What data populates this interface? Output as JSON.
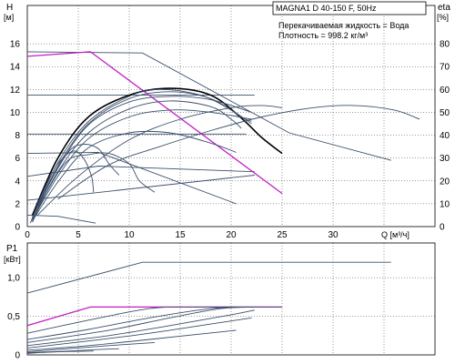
{
  "header": {
    "model": "MAGNA1 D 40-150 F, 50Hz",
    "liquid": "Перекачиваемая жидкость = Вода",
    "density": "Плотность = 998.2 кг/м³"
  },
  "chart_data": [
    {
      "type": "line",
      "title": "",
      "y_left_label": "H",
      "y_left_unit": "[м]",
      "y_right_label": "eta",
      "y_right_unit": "[%]",
      "x_label": "Q [м³/ч]",
      "xlim": [
        0,
        40
      ],
      "ylim": [
        0,
        18
      ],
      "ylim_right": [
        0,
        90
      ],
      "x_ticks": [
        "0",
        "5",
        "10",
        "15",
        "20",
        "25",
        "30",
        "Q [м³/ч]"
      ],
      "y_ticks": [
        "0",
        "2",
        "4",
        "6",
        "8",
        "10",
        "12",
        "14",
        "16"
      ],
      "y_right_ticks": [
        "0",
        "10",
        "20",
        "30",
        "40",
        "50",
        "60",
        "70",
        "80"
      ],
      "grid": true,
      "series": [
        {
          "role": "const-curve",
          "color": "#3b4f6b",
          "points": [
            [
              0,
              15.3
            ],
            [
              11.3,
              15.2
            ],
            [
              25.7,
              8.2
            ],
            [
              35.7,
              5.8
            ]
          ]
        },
        {
          "role": "const-curve",
          "color": "#3b4f6b",
          "points": [
            [
              0,
              11.5
            ],
            [
              22.3,
              11.5
            ]
          ]
        },
        {
          "role": "const-curve",
          "color": "#3b4f6b",
          "points": [
            [
              0,
              8.1
            ],
            [
              21.5,
              8.1
            ]
          ]
        },
        {
          "role": "const-curve",
          "color": "#3b4f6b",
          "points": [
            [
              0,
              6.4
            ],
            [
              7,
              6.5
            ],
            [
              20.5,
              2.0
            ]
          ]
        },
        {
          "role": "const-curve",
          "color": "#3b4f6b",
          "points": [
            [
              0,
              4.4
            ],
            [
              7,
              5.3
            ],
            [
              22.3,
              4.8
            ]
          ]
        },
        {
          "role": "const-curve",
          "color": "#3b4f6b",
          "points": [
            [
              0,
              2.3
            ],
            [
              22.3,
              4.5
            ]
          ]
        },
        {
          "role": "const-curve",
          "color": "#3b4f6b",
          "points": [
            [
              0,
              1.0
            ],
            [
              3,
              0.9
            ],
            [
              6.7,
              0.3
            ]
          ]
        },
        {
          "role": "autoadapt",
          "color": "#c21fc2",
          "points": [
            [
              0,
              14.9
            ],
            [
              6.2,
              15.3
            ],
            [
              25,
              2.9
            ]
          ]
        },
        {
          "role": "curve",
          "color": "#000000",
          "points": [
            [
              0.5,
              1
            ],
            [
              3,
              6
            ],
            [
              6,
              9.6
            ],
            [
              10,
              11.5
            ],
            [
              14,
              12.1
            ],
            [
              18,
              11.5
            ],
            [
              21,
              9.5
            ],
            [
              23,
              7.8
            ],
            [
              25,
              6.4
            ]
          ]
        },
        {
          "role": "curve",
          "color": "#3b4f6b",
          "points": [
            [
              0.5,
              0.8
            ],
            [
              3,
              5.3
            ],
            [
              6,
              9
            ],
            [
              10,
              11.2
            ],
            [
              14,
              11.8
            ],
            [
              18,
              11.2
            ],
            [
              21,
              9.6
            ],
            [
              22,
              9.2
            ]
          ]
        },
        {
          "role": "curve",
          "color": "#3b4f6b",
          "points": [
            [
              0.5,
              0.8
            ],
            [
              3,
              5.6
            ],
            [
              6,
              9.2
            ],
            [
              10,
              11.4
            ],
            [
              13,
              12.0
            ],
            [
              17,
              11.5
            ],
            [
              20,
              10.2
            ],
            [
              22,
              9.0
            ]
          ]
        },
        {
          "role": "curve",
          "color": "#3b4f6b",
          "points": [
            [
              0.5,
              0.8
            ],
            [
              3,
              5.1
            ],
            [
              6,
              8.9
            ],
            [
              10,
              10.9
            ],
            [
              14,
              11.4
            ],
            [
              18,
              11.1
            ],
            [
              22,
              10.0
            ]
          ]
        },
        {
          "role": "curve",
          "color": "#3b4f6b",
          "points": [
            [
              0.5,
              0.6
            ],
            [
              3,
              4.8
            ],
            [
              6,
              8.2
            ],
            [
              10,
              10.3
            ],
            [
              14,
              11.0
            ],
            [
              18,
              10.5
            ],
            [
              20,
              9.4
            ],
            [
              21,
              8.6
            ]
          ]
        },
        {
          "role": "curve",
          "color": "#3b4f6b",
          "points": [
            [
              0.5,
              0.6
            ],
            [
              3,
              4.4
            ],
            [
              6,
              7.7
            ],
            [
              10,
              9.6
            ],
            [
              14,
              10.2
            ],
            [
              18,
              10.0
            ],
            [
              22,
              9.4
            ]
          ]
        },
        {
          "role": "curve",
          "color": "#3b4f6b",
          "points": [
            [
              0.5,
              0.5
            ],
            [
              3,
              3.9
            ],
            [
              6,
              6.9
            ],
            [
              10,
              8.2
            ],
            [
              14,
              8.2
            ],
            [
              18,
              7.3
            ],
            [
              20.5,
              6.5
            ]
          ]
        },
        {
          "role": "curve",
          "color": "#3b4f6b",
          "points": [
            [
              0.5,
              0.4
            ],
            [
              2,
              3.2
            ],
            [
              4,
              5.8
            ],
            [
              6,
              6.3
            ],
            [
              8,
              6.4
            ],
            [
              10,
              5.5
            ],
            [
              11,
              4.0
            ],
            [
              12.5,
              3.0
            ]
          ]
        },
        {
          "role": "curve",
          "color": "#3b4f6b",
          "points": [
            [
              0.5,
              0.4
            ],
            [
              2,
              3.5
            ],
            [
              4,
              6.5
            ],
            [
              5.5,
              7.2
            ],
            [
              7,
              6.8
            ],
            [
              8,
              5.5
            ],
            [
              9,
              4.5
            ]
          ]
        },
        {
          "role": "curve",
          "color": "#3b4f6b",
          "points": [
            [
              0.3,
              0.3
            ],
            [
              1.5,
              3
            ],
            [
              3,
              5.5
            ],
            [
              4.5,
              6.6
            ],
            [
              5.5,
              6.0
            ],
            [
              6.3,
              4.4
            ],
            [
              6.5,
              3.0
            ]
          ]
        },
        {
          "role": "eff",
          "color": "#3b4f6b",
          "points": [
            [
              3,
              12
            ],
            [
              8,
              27
            ],
            [
              13,
              35
            ],
            [
              18,
              42
            ],
            [
              23,
              48
            ],
            [
              28,
              52
            ],
            [
              32,
              53
            ],
            [
              36,
              51
            ],
            [
              38.5,
              47
            ]
          ]
        },
        {
          "role": "eff",
          "color": "#3b4f6b",
          "points": [
            [
              1,
              5
            ],
            [
              5,
              22
            ],
            [
              10,
              38
            ],
            [
              15,
              47
            ],
            [
              20,
              52
            ],
            [
              23,
              53
            ],
            [
              25,
              52
            ]
          ]
        }
      ]
    },
    {
      "type": "line",
      "title": "",
      "y_label": "P1",
      "y_unit": "[кВт]",
      "xlim": [
        0,
        40
      ],
      "ylim": [
        0,
        1.45
      ],
      "y_ticks": [
        "0",
        "0,5",
        "1,0"
      ],
      "grid": true,
      "series": [
        {
          "role": "const-curve",
          "color": "#3b4f6b",
          "points": [
            [
              0,
              0.8
            ],
            [
              11.3,
              1.2
            ],
            [
              35.7,
              1.2
            ]
          ]
        },
        {
          "role": "autoadapt",
          "color": "#c21fc2",
          "points": [
            [
              0,
              0.38
            ],
            [
              6.2,
              0.62
            ],
            [
              25,
              0.62
            ]
          ]
        },
        {
          "role": "curve",
          "color": "#3b4f6b",
          "points": [
            [
              0,
              0.28
            ],
            [
              6,
              0.45
            ],
            [
              12,
              0.6
            ],
            [
              16,
              0.62
            ],
            [
              25,
              0.62
            ]
          ]
        },
        {
          "role": "curve",
          "color": "#3b4f6b",
          "points": [
            [
              0,
              0.2
            ],
            [
              6,
              0.33
            ],
            [
              12,
              0.48
            ],
            [
              18,
              0.6
            ],
            [
              22.3,
              0.62
            ]
          ]
        },
        {
          "role": "curve",
          "color": "#3b4f6b",
          "points": [
            [
              0,
              0.16
            ],
            [
              8,
              0.32
            ],
            [
              14,
              0.48
            ],
            [
              19,
              0.6
            ],
            [
              22.3,
              0.62
            ]
          ]
        },
        {
          "role": "curve",
          "color": "#3b4f6b",
          "points": [
            [
              0,
              0.12
            ],
            [
              8,
              0.25
            ],
            [
              14,
              0.38
            ],
            [
              20,
              0.52
            ],
            [
              22.3,
              0.58
            ]
          ]
        },
        {
          "role": "curve",
          "color": "#3b4f6b",
          "points": [
            [
              0,
              0.09
            ],
            [
              6,
              0.18
            ],
            [
              12,
              0.28
            ],
            [
              18,
              0.4
            ],
            [
              22,
              0.48
            ]
          ]
        },
        {
          "role": "curve",
          "color": "#3b4f6b",
          "points": [
            [
              0,
              0.06
            ],
            [
              6,
              0.12
            ],
            [
              12,
              0.2
            ],
            [
              17,
              0.27
            ],
            [
              20.5,
              0.32
            ]
          ]
        },
        {
          "role": "curve",
          "color": "#3b4f6b",
          "points": [
            [
              0,
              0.04
            ],
            [
              4,
              0.08
            ],
            [
              8,
              0.12
            ],
            [
              12.5,
              0.16
            ]
          ]
        },
        {
          "role": "curve",
          "color": "#3b4f6b",
          "points": [
            [
              0,
              0.03
            ],
            [
              4,
              0.05
            ],
            [
              7,
              0.07
            ],
            [
              9,
              0.08
            ]
          ]
        },
        {
          "role": "curve",
          "color": "#3b4f6b",
          "points": [
            [
              0,
              0.02
            ],
            [
              3,
              0.04
            ],
            [
              6.5,
              0.05
            ]
          ]
        }
      ]
    }
  ]
}
